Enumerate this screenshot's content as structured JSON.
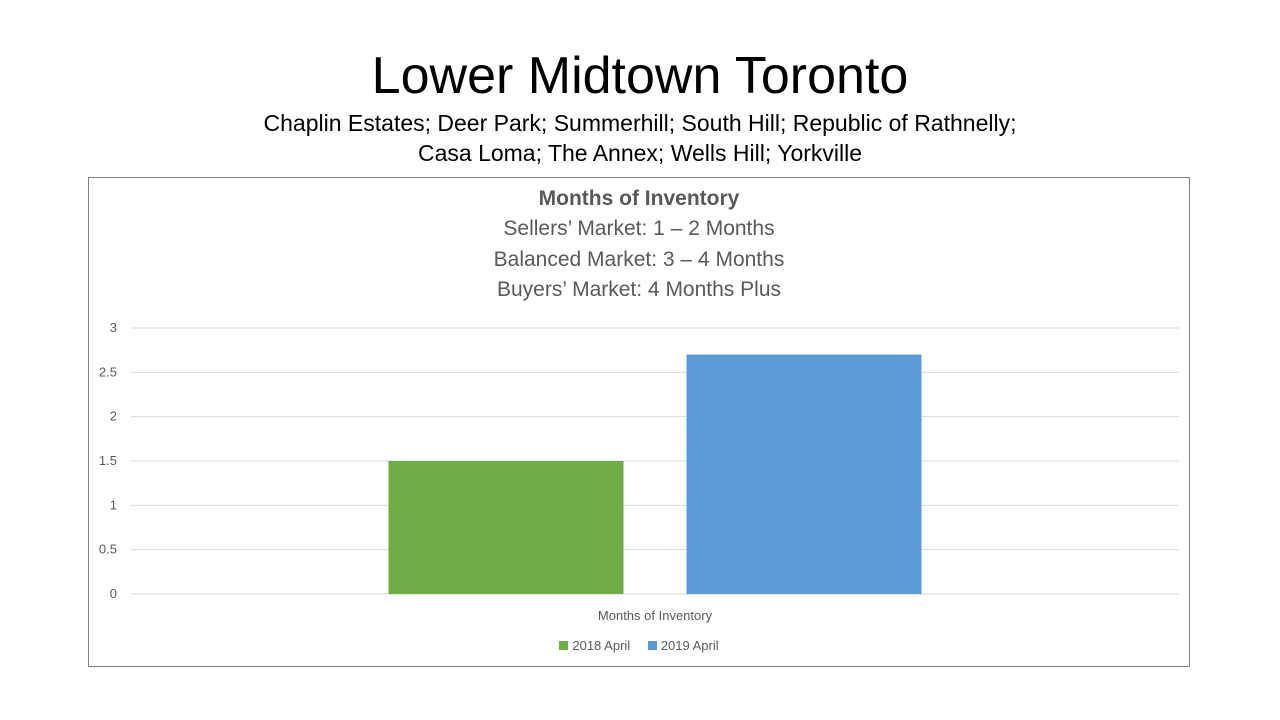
{
  "slide": {
    "title": "Lower Midtown Toronto",
    "subtitle_lines": [
      "Chaplin Estates; Deer Park; Summerhill; South Hill; Republic of Rathnelly;",
      "Casa Loma; The Annex; Wells Hill; Yorkville"
    ]
  },
  "chart_data": {
    "type": "bar",
    "title": "Months of Inventory",
    "title_lines": [
      "Sellers’ Market:  1 – 2 Months",
      "Balanced Market:  3 – 4 Months",
      "Buyers’ Market:  4 Months Plus"
    ],
    "categories": [
      "Months of Inventory"
    ],
    "series": [
      {
        "name": "2018 April",
        "values": [
          1.5
        ],
        "color": "#70AD47"
      },
      {
        "name": "2019 April",
        "values": [
          2.7
        ],
        "color": "#5B9BD5"
      }
    ],
    "ylim": [
      0,
      3
    ],
    "yticks": [
      "0",
      "0.5",
      "1",
      "1.5",
      "2",
      "2.5",
      "3"
    ],
    "grid": true,
    "legend_position": "bottom"
  }
}
